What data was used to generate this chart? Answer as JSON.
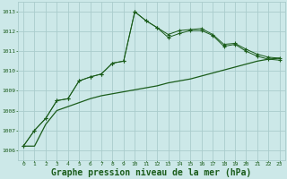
{
  "background_color": "#cce8e8",
  "grid_color": "#aacccc",
  "line_color": "#1a5c1a",
  "marker_color": "#1a5c1a",
  "xlabel": "Graphe pression niveau de la mer (hPa)",
  "xlabel_fontsize": 7.0,
  "ylim": [
    1005.5,
    1013.5
  ],
  "xlim": [
    -0.5,
    23.5
  ],
  "yticks": [
    1006,
    1007,
    1008,
    1009,
    1010,
    1011,
    1012,
    1013
  ],
  "xticks": [
    0,
    1,
    2,
    3,
    4,
    5,
    6,
    7,
    8,
    9,
    10,
    11,
    12,
    13,
    14,
    15,
    16,
    17,
    18,
    19,
    20,
    21,
    22,
    23
  ],
  "series1_x": [
    0,
    1,
    2,
    3,
    4,
    5,
    6,
    7,
    8,
    9,
    10,
    11,
    12,
    13,
    14,
    15,
    16,
    17,
    18,
    19,
    20,
    21,
    22,
    23
  ],
  "series1_y": [
    1006.2,
    1007.0,
    1007.6,
    1008.5,
    1008.6,
    1009.5,
    1009.7,
    1009.85,
    1010.4,
    1010.5,
    1013.0,
    1012.55,
    1012.2,
    1011.85,
    1012.05,
    1012.1,
    1012.15,
    1011.85,
    1011.35,
    1011.4,
    1011.1,
    1010.85,
    1010.7,
    1010.65
  ],
  "series2_x": [
    0,
    1,
    2,
    3,
    4,
    5,
    6,
    7,
    8,
    9,
    10,
    11,
    12,
    13,
    14,
    15,
    16,
    17,
    18,
    19,
    20,
    21,
    22,
    23
  ],
  "series2_y": [
    1006.2,
    1007.0,
    1007.6,
    1008.5,
    1008.6,
    1009.5,
    1009.7,
    1009.85,
    1010.4,
    1010.5,
    1013.0,
    1012.55,
    1012.2,
    1011.7,
    1011.9,
    1012.05,
    1012.05,
    1011.8,
    1011.25,
    1011.35,
    1011.0,
    1010.75,
    1010.6,
    1010.55
  ],
  "series3_x": [
    0,
    1,
    2,
    3,
    4,
    5,
    6,
    7,
    8,
    9,
    10,
    11,
    12,
    13,
    14,
    15,
    16,
    17,
    18,
    19,
    20,
    21,
    22,
    23
  ],
  "series3_y": [
    1006.2,
    1006.2,
    1007.3,
    1008.0,
    1008.2,
    1008.4,
    1008.6,
    1008.75,
    1008.85,
    1008.95,
    1009.05,
    1009.15,
    1009.25,
    1009.4,
    1009.5,
    1009.6,
    1009.75,
    1009.9,
    1010.05,
    1010.2,
    1010.35,
    1010.5,
    1010.6,
    1010.65
  ]
}
